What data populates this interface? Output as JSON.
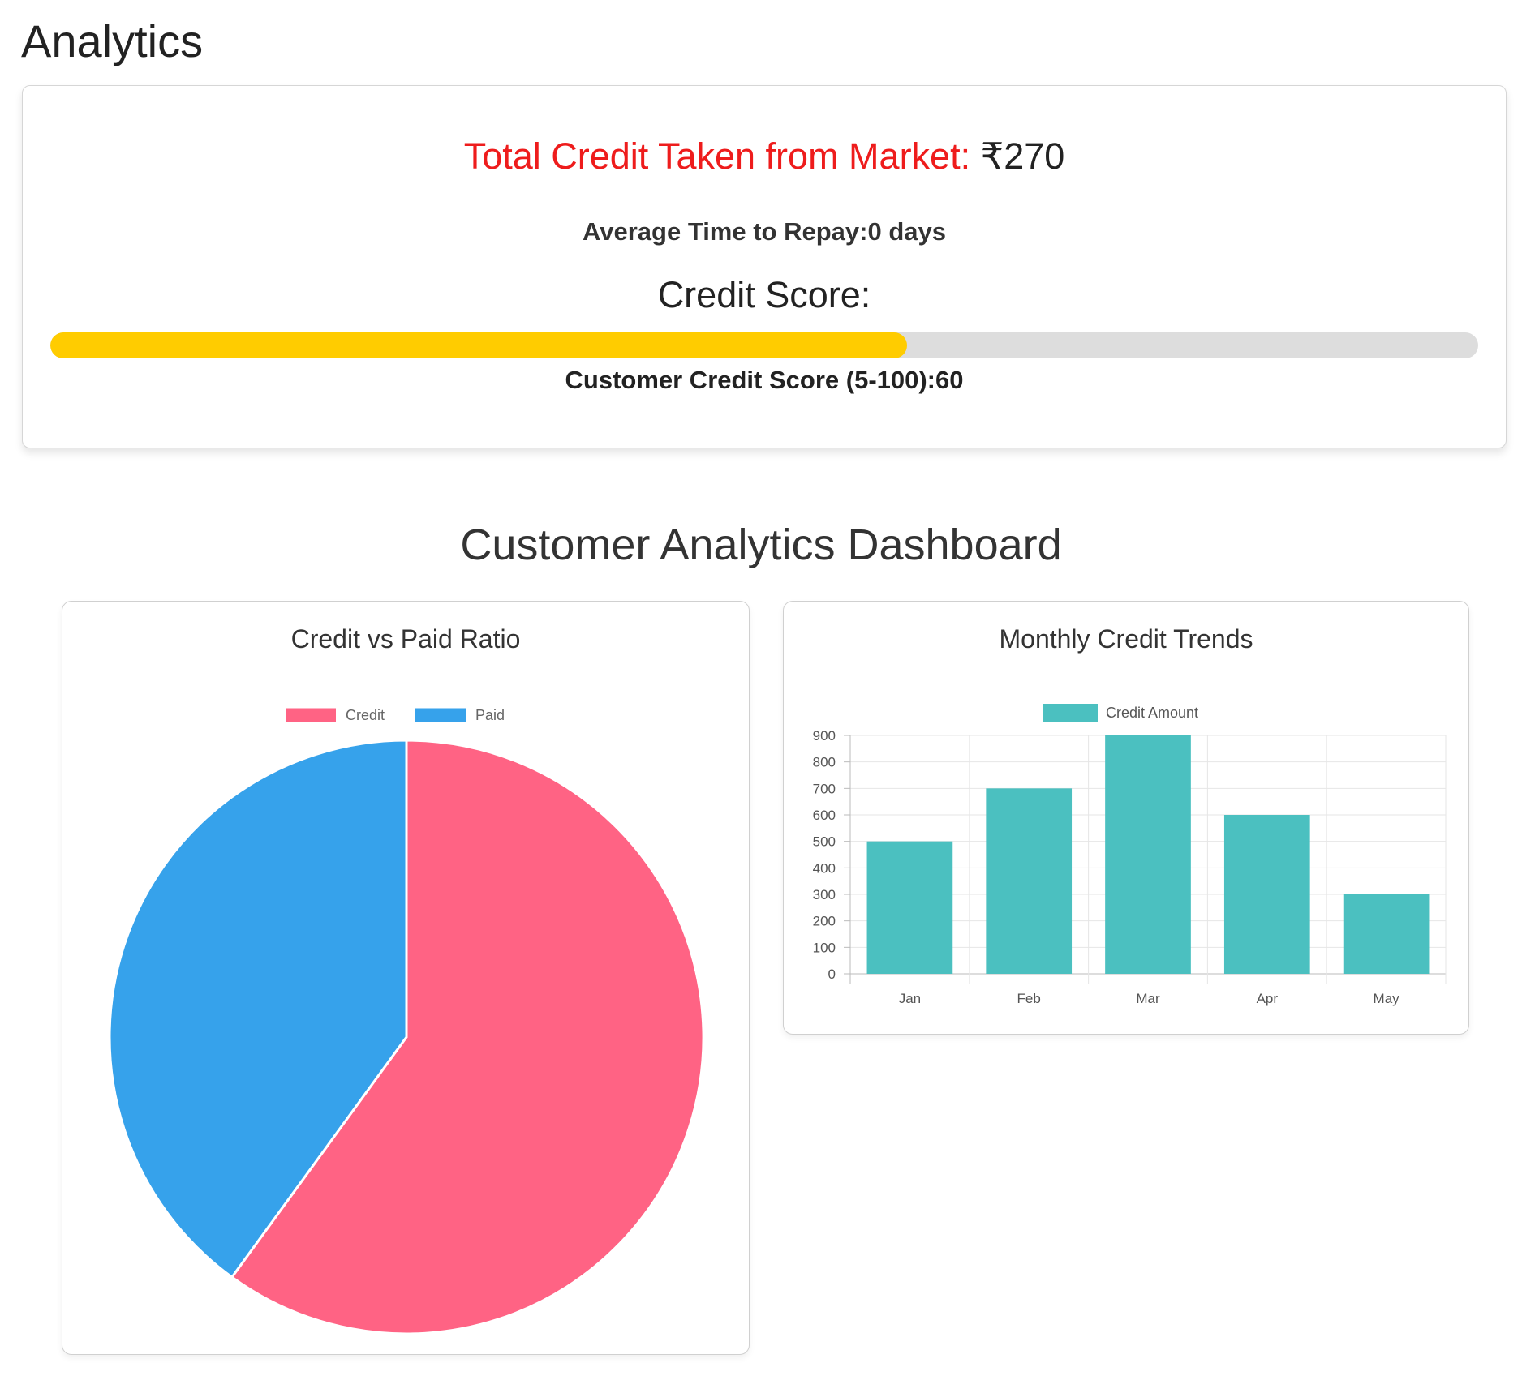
{
  "page": {
    "title": "Analytics"
  },
  "summary": {
    "total_credit_label": "Total Credit Taken from Market: ",
    "total_credit_value": "₹270",
    "average_time": "Average Time to Repay:0 days",
    "credit_score_heading": "Credit Score:",
    "credit_score_caption": "Customer Credit Score (5-100):60",
    "credit_score_value": 60,
    "colors": {
      "label_red": "#ee1c1c",
      "bar_fill": "#ffcc00",
      "bar_track": "#dddddd"
    }
  },
  "dashboard": {
    "title": "Customer Analytics Dashboard"
  },
  "chart_data": [
    {
      "type": "pie",
      "title": "Credit vs Paid Ratio",
      "labels": [
        "Credit",
        "Paid"
      ],
      "values": [
        60,
        40
      ],
      "colors": [
        "#ff6384",
        "#36a2eb"
      ],
      "legend": "top"
    },
    {
      "type": "bar",
      "title": "Monthly Credit Trends",
      "categories": [
        "Jan",
        "Feb",
        "Mar",
        "Apr",
        "May"
      ],
      "series": [
        {
          "name": "Credit Amount",
          "values": [
            500,
            700,
            900,
            600,
            300
          ],
          "color": "#4bc0c0"
        }
      ],
      "ylim": [
        0,
        900
      ],
      "yticks": [
        "0",
        "100",
        "200",
        "300",
        "400",
        "500",
        "600",
        "700",
        "800",
        "900"
      ],
      "grid": true,
      "legend": "top"
    }
  ]
}
